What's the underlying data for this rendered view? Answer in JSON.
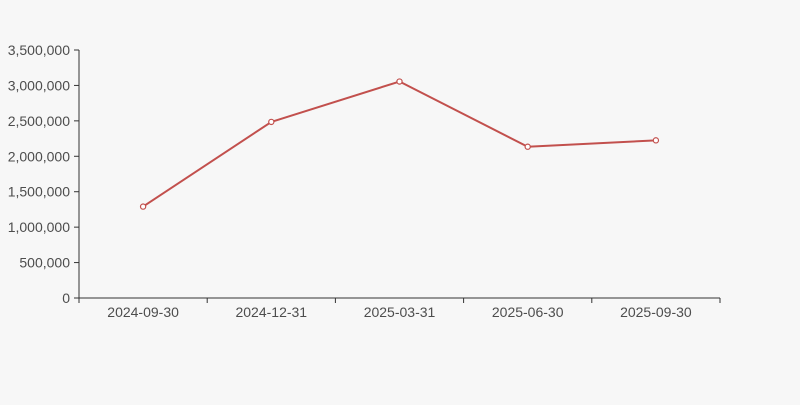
{
  "chart_data": {
    "type": "line",
    "title": "",
    "xlabel": "",
    "ylabel": "",
    "categories": [
      "2024-09-30",
      "2024-12-31",
      "2025-03-31",
      "2025-06-30",
      "2025-09-30"
    ],
    "series": [
      {
        "name": "value",
        "values": [
          1290000,
          2485000,
          3055000,
          2135000,
          2225000
        ]
      }
    ],
    "ylim": [
      0,
      3500000
    ],
    "ytick_step": 500000,
    "ytick_labels": [
      "0",
      "500,000",
      "1,000,000",
      "1,500,000",
      "2,000,000",
      "2,500,000",
      "3,000,000",
      "3,500,000"
    ],
    "grid": false,
    "legend_position": "none",
    "line_color": "#c2504d",
    "marker_shape": "circle",
    "marker_fill": "#ffffff",
    "axis_color": "#333333",
    "label_color": "#4d4d4d",
    "background_color": "#f7f7f7"
  }
}
